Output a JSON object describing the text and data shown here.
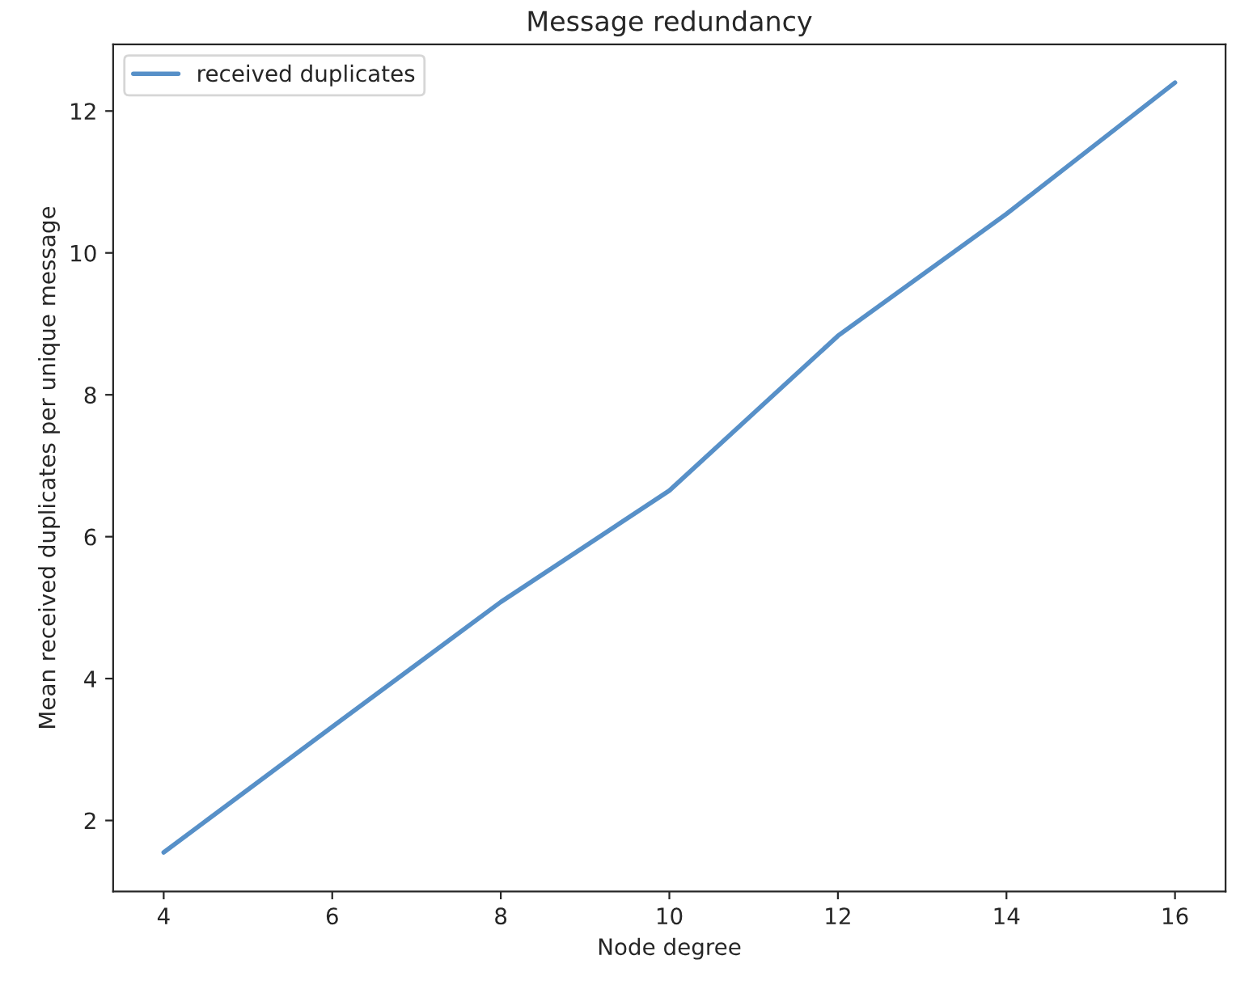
{
  "chart_data": {
    "type": "line",
    "title": "Message redundancy",
    "xlabel": "Node degree",
    "ylabel": "Mean received duplicates per unique message",
    "x": [
      4,
      6,
      8,
      10,
      12,
      14,
      16
    ],
    "series": [
      {
        "name": "received duplicates",
        "color": "#5790c8",
        "values": [
          1.55,
          3.32,
          5.08,
          6.65,
          8.83,
          10.55,
          12.4
        ]
      }
    ],
    "xlim": [
      3.4,
      16.6
    ],
    "xticks": [
      4,
      6,
      8,
      10,
      12,
      14,
      16
    ],
    "ylim": [
      1.0,
      12.94
    ],
    "yticks": [
      2,
      4,
      6,
      8,
      10,
      12
    ],
    "grid": false,
    "legend": "top left",
    "marker": "none",
    "line_style": "solid"
  }
}
